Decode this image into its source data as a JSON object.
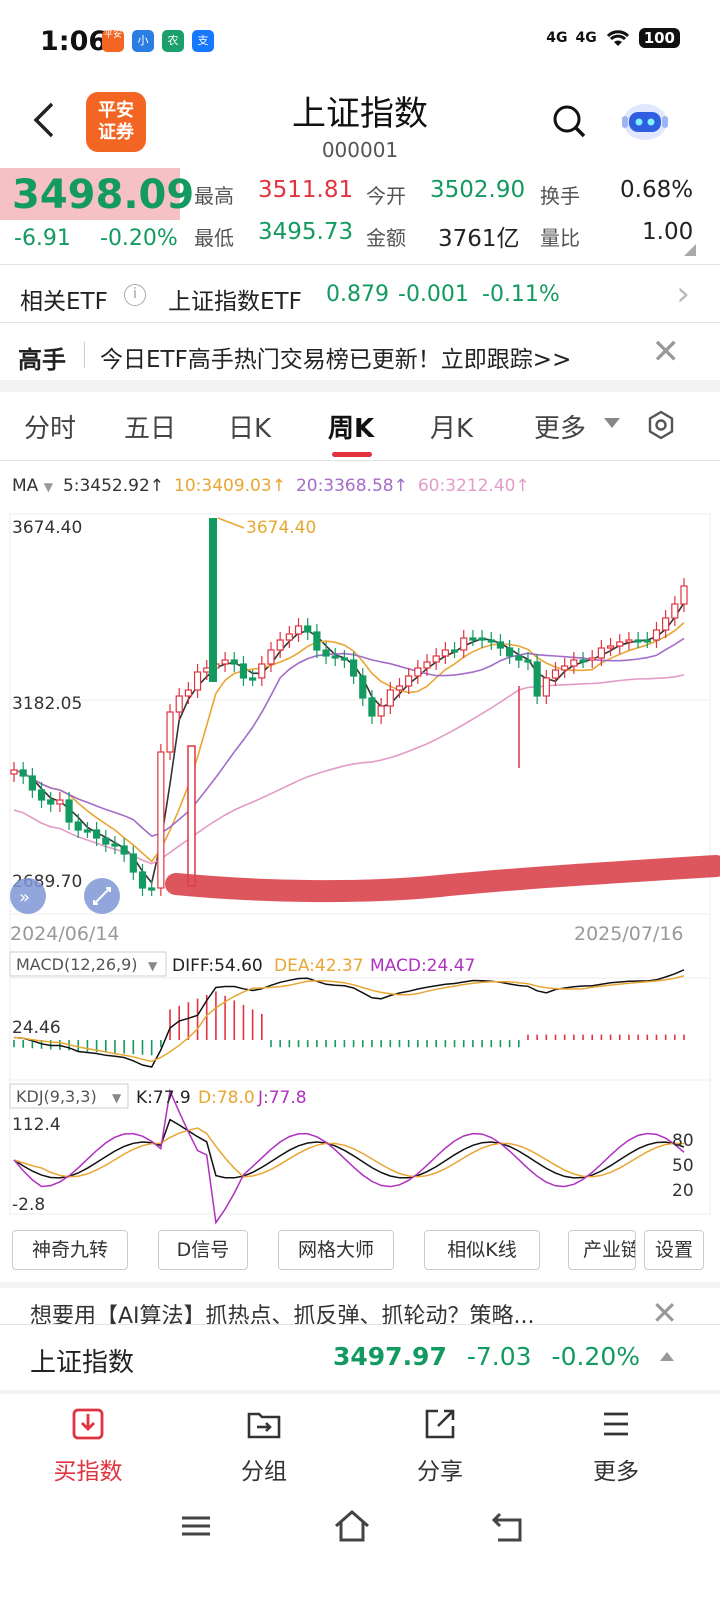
{
  "status_bar": {
    "time": "1:06",
    "app_icons": [
      "平安",
      "小",
      "农",
      "支"
    ],
    "network1": "4G",
    "network2": "4G",
    "battery": "100"
  },
  "header": {
    "logo_text_line1": "平安",
    "logo_text_line2": "证券",
    "title": "上证指数",
    "code": "000001"
  },
  "quote": {
    "price": "3498.09",
    "change": "-6.91",
    "change_pct": "-0.20%",
    "high_label": "最高",
    "high": "3511.81",
    "low_label": "最低",
    "low": "3495.73",
    "open_label": "今开",
    "open": "3502.90",
    "amount_label": "金额",
    "amount": "3761亿",
    "turnover_label": "换手",
    "turnover": "0.68%",
    "volume_ratio_label": "量比",
    "volume_ratio": "1.00"
  },
  "etf": {
    "label": "相关ETF",
    "name": "上证指数ETF",
    "price": "0.879",
    "change": "-0.001",
    "change_pct": "-0.11%"
  },
  "gaoshou": {
    "label": "高手",
    "text": "今日ETF高手热门交易榜已更新！立即跟踪>>"
  },
  "tabs": [
    {
      "label": "分时"
    },
    {
      "label": "五日"
    },
    {
      "label": "日K"
    },
    {
      "label": "周K",
      "active": true
    },
    {
      "label": "月K"
    },
    {
      "label": "更多"
    }
  ],
  "ma_legend": {
    "ma_label": "MA",
    "ma5": "5:3452.92↑",
    "ma10": "10:3409.03↑",
    "ma20": "20:3368.58↑",
    "ma60": "60:3212.40↑"
  },
  "chart_data": {
    "type": "candlestick",
    "y_ticks": [
      "3674.40",
      "3182.05",
      "2689.70"
    ],
    "max_label": "3674.40",
    "min_label": "2689.70",
    "x_start": "2024/06/14",
    "x_end": "2025/07/16",
    "macd_selector": "MACD(12,26,9)",
    "macd_diff": "DIFF:54.60",
    "macd_dea": "DEA:42.37",
    "macd_macd": "MACD:24.47",
    "macd_tick": "24.46",
    "kdj_selector": "KDJ(9,3,3)",
    "kdj_k": "K:77.9",
    "kdj_d": "D:78.0",
    "kdj_j": "J:77.8",
    "kdj_top": "112.4",
    "kdj_bottom": "-2.8",
    "kdj_levels": [
      "80",
      "50",
      "20"
    ]
  },
  "tools": [
    "神奇九转",
    "D信号",
    "网格大师",
    "相似K线",
    "产业链",
    "设置"
  ],
  "ad": {
    "text": "想要用【AI算法】抓热点、抓反弹、抓轮动？策略..."
  },
  "bottom_index": {
    "name": "上证指数",
    "price": "3497.97",
    "change": "-7.03",
    "change_pct": "-0.20%"
  },
  "nav": [
    {
      "label": "买指数",
      "icon": "buy-index-icon"
    },
    {
      "label": "分组",
      "icon": "group-icon"
    },
    {
      "label": "分享",
      "icon": "share-icon"
    },
    {
      "label": "更多",
      "icon": "more-menu-icon"
    }
  ],
  "colors": {
    "up": "#e0333f",
    "down": "#139a61",
    "ma5": "#333333",
    "ma10": "#e8a632",
    "ma20": "#a46cc8",
    "ma60": "#e39bc7"
  }
}
